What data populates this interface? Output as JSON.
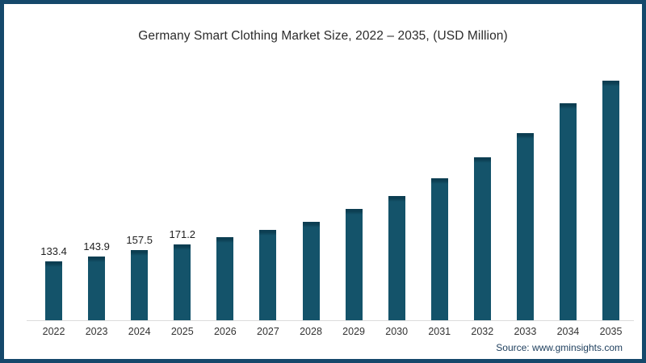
{
  "chart_data": {
    "type": "bar",
    "title": "Germany Smart Clothing Market Size, 2022 – 2035, (USD Million)",
    "categories": [
      "2022",
      "2023",
      "2024",
      "2025",
      "2026",
      "2027",
      "2028",
      "2029",
      "2030",
      "2031",
      "2032",
      "2033",
      "2034",
      "2035"
    ],
    "values": [
      133.4,
      143.9,
      157.5,
      171.2,
      187.5,
      204.5,
      222,
      251,
      280,
      320.5,
      368,
      421,
      490,
      540
    ],
    "value_labels": {
      "2022": "133.4",
      "2023": "143.9",
      "2024": "157.5",
      "2025": "171.2"
    },
    "xlabel": "",
    "ylabel": "",
    "ylim": [
      0,
      585
    ],
    "gridlines": false,
    "legend": false,
    "y_axis_shown": false
  },
  "source": {
    "label": "Source: www.gminsights.com"
  },
  "colors": {
    "bar": "#14536a",
    "bar_cap": "#0c3e52",
    "frame_border": "#15486b",
    "axis_line": "#dcdcdc",
    "title_text": "#2b2b2b",
    "value_label_text": "#1f1f1f",
    "tick_label_text": "#333333",
    "source_text": "#1c3d5c"
  }
}
